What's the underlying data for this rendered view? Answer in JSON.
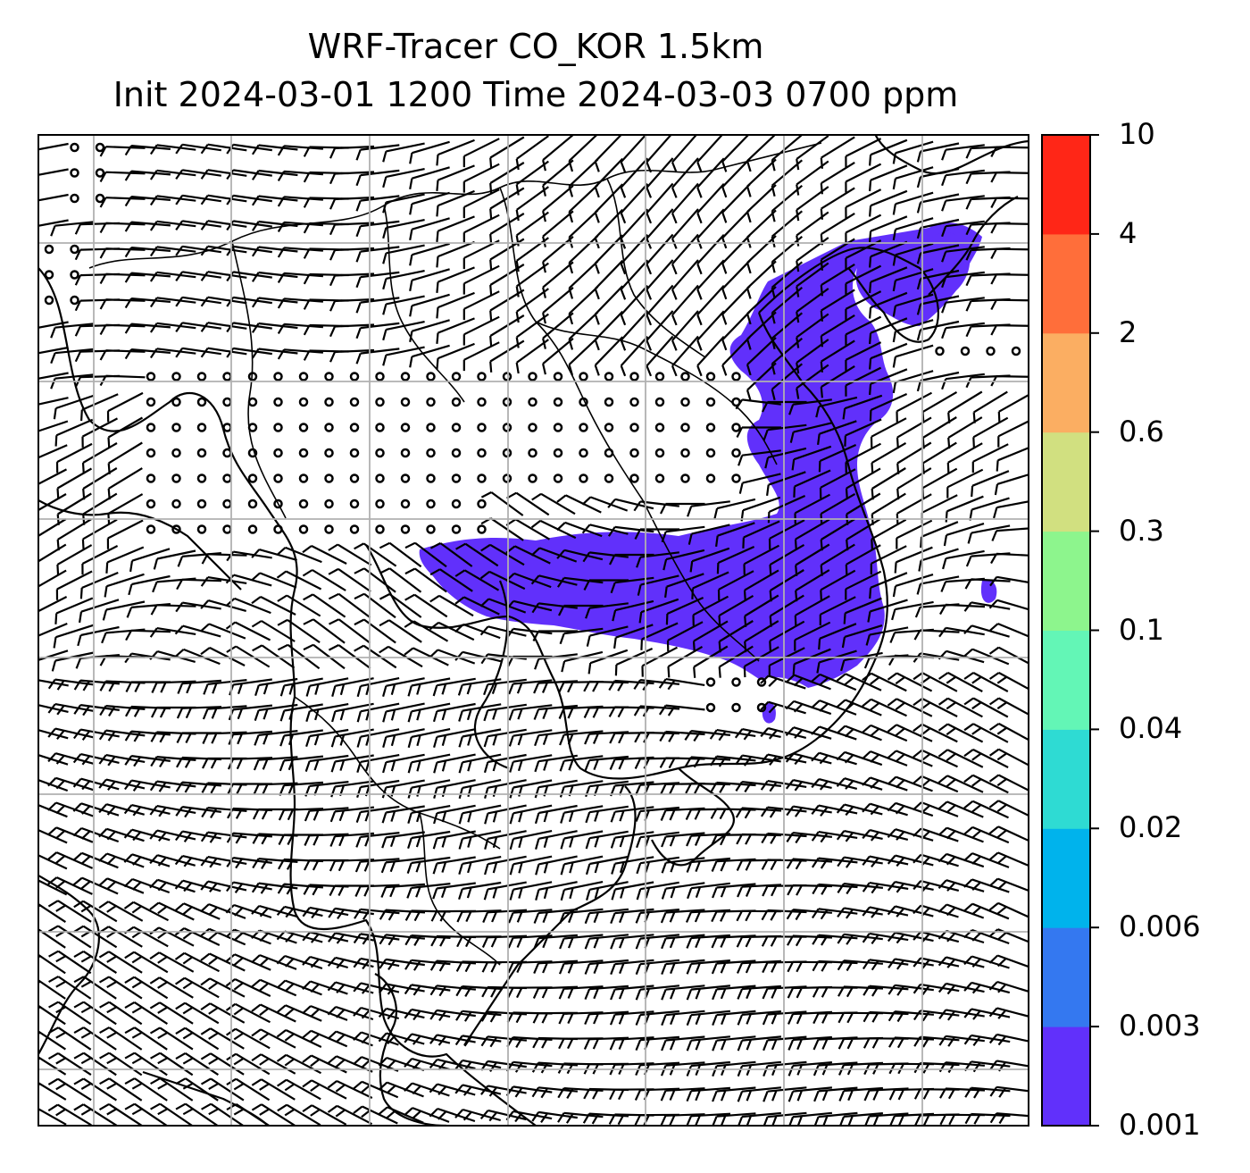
{
  "title": {
    "line1": "WRF-Tracer CO_KOR 1.5km",
    "line2": "Init 2024-03-01 1200 Time 2024-03-03 0700 ppm"
  },
  "colorbar": {
    "levels": [
      "0.001",
      "0.003",
      "0.006",
      "0.02",
      "0.04",
      "0.1",
      "0.3",
      "0.6",
      "2",
      "4",
      "10"
    ],
    "colors": [
      "#6130fb",
      "#3478f0",
      "#00b3ec",
      "#2edbd3",
      "#63f6b6",
      "#8df58d",
      "#d1e080",
      "#fbae62",
      "#ff6e3a",
      "#ff2617"
    ]
  },
  "map": {
    "plume_color": "#6130fb",
    "grid_color": "#b0b0b0",
    "layers": [
      "coastlines",
      "borders",
      "wind-barbs",
      "calm-circles",
      "tracer-plume",
      "gridlines"
    ]
  }
}
